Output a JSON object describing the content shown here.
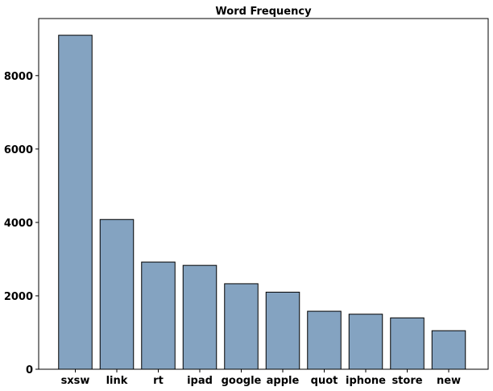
{
  "chart_data": {
    "type": "bar",
    "title": "Word Frequency",
    "xlabel": "",
    "ylabel": "",
    "categories": [
      "sxsw",
      "link",
      "rt",
      "ipad",
      "google",
      "apple",
      "quot",
      "iphone",
      "store",
      "new"
    ],
    "values": [
      9100,
      4080,
      2920,
      2830,
      2330,
      2100,
      1580,
      1500,
      1400,
      1050
    ],
    "ylim": [
      0,
      9555
    ],
    "yticks": [
      0,
      2000,
      4000,
      6000,
      8000
    ],
    "ytick_labels": [
      "0",
      "2000",
      "4000",
      "6000",
      "8000"
    ],
    "bar_color": "#84a3c1",
    "edge_color": "#000000",
    "grid": false,
    "legend": "none"
  }
}
